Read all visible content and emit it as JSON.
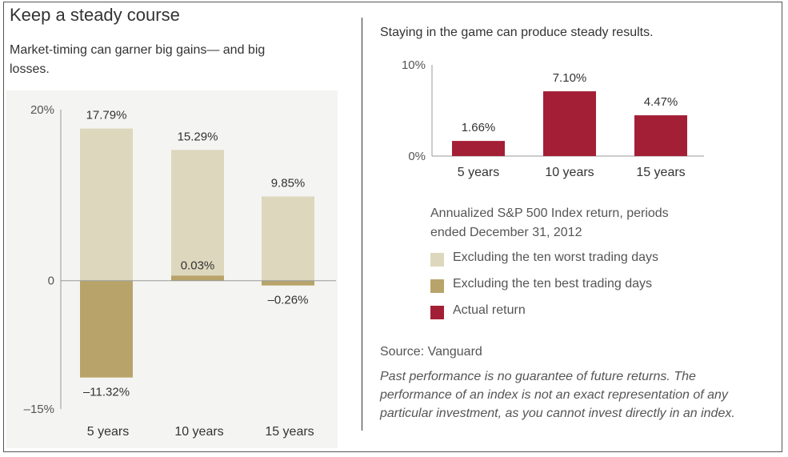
{
  "title": "Keep a steady course",
  "subtitle": "Market-timing can garner big gains— and big losses.",
  "right_title": "Staying in the game can produce steady results.",
  "legend": {
    "title": "Annualized S&P 500 Index return, periods ended December 31, 2012",
    "items": [
      {
        "label": "Excluding the ten worst trading days",
        "color": "#ddd7bd"
      },
      {
        "label": "Excluding the ten best trading days",
        "color": "#b8a46a"
      },
      {
        "label": "Actual return",
        "color": "#a31f35"
      }
    ]
  },
  "source": "Source: Vanguard",
  "disclaimer": "Past performance is no guarantee of future returns. The performance of an index is not an exact representation of any particular investment, as you cannot invest directly in an index.",
  "chart_data": [
    {
      "type": "bar",
      "categories": [
        "5 years",
        "10 years",
        "15 years"
      ],
      "series": [
        {
          "name": "Excluding the ten worst trading days",
          "values": [
            17.79,
            15.29,
            9.85
          ],
          "labels": [
            "17.79%",
            "15.29%",
            "9.85%"
          ],
          "color": "#ddd7bd"
        },
        {
          "name": "Excluding the ten best trading days",
          "values": [
            -11.32,
            0.03,
            -0.26
          ],
          "labels": [
            "–11.32%",
            "0.03%",
            "–0.26%"
          ],
          "color": "#b8a46a"
        }
      ],
      "yticks": [
        "20%",
        "0",
        "–15%"
      ],
      "ylim": [
        -15,
        20
      ]
    },
    {
      "type": "bar",
      "categories": [
        "5 years",
        "10 years",
        "15 years"
      ],
      "series": [
        {
          "name": "Actual return",
          "values": [
            1.66,
            7.1,
            4.47
          ],
          "labels": [
            "1.66%",
            "7.10%",
            "4.47%"
          ],
          "color": "#a31f35"
        }
      ],
      "yticks": [
        "10%",
        "0%"
      ],
      "ylim": [
        0,
        10
      ]
    }
  ]
}
